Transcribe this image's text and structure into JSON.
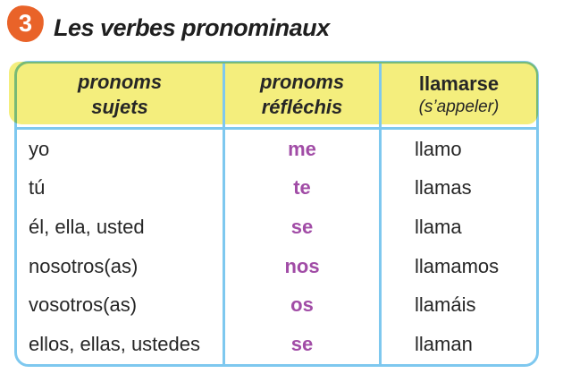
{
  "badge": {
    "number": "3"
  },
  "title": "Les verbes pronominaux",
  "table": {
    "columns": [
      {
        "header_line1": "pronoms",
        "header_line2": "sujets"
      },
      {
        "header_line1": "pronoms",
        "header_line2": "réfléchis"
      },
      {
        "header_line1": "llamarse",
        "header_line2": "(s’appeler)"
      }
    ],
    "rows": [
      {
        "subject": "yo",
        "reflexive": "me",
        "verb": "llamo"
      },
      {
        "subject": "tú",
        "reflexive": "te",
        "verb": "llamas"
      },
      {
        "subject": "él, ella, usted",
        "reflexive": "se",
        "verb": "llama"
      },
      {
        "subject": "nosotros(as)",
        "reflexive": "nos",
        "verb": "llamamos"
      },
      {
        "subject": "vosotros(as)",
        "reflexive": "os",
        "verb": "llamáis"
      },
      {
        "subject": "ellos, ellas, ustedes",
        "reflexive": "se",
        "verb": "llaman"
      }
    ]
  },
  "colors": {
    "badge_orange": "#E96329",
    "highlight_yellow": "#F4EE7D",
    "border_blue": "#7EC8EF",
    "pronoun_purple": "#A14CA6",
    "text_dark": "#262626"
  }
}
